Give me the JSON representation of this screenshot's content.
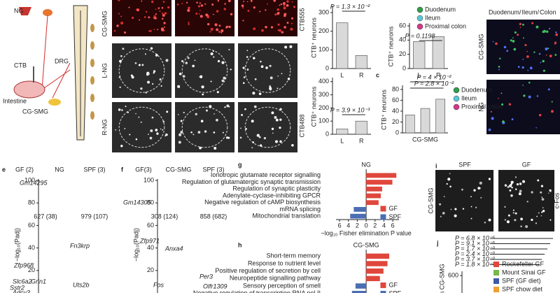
{
  "diagram": {
    "ng": "NG",
    "ctb": "CTB",
    "drg": "DRG",
    "intestine": "Intestine",
    "cgsmg": "CG-SMG"
  },
  "panel_b": {
    "rows": [
      "CG-SMG",
      "L-NG",
      "R-NG"
    ],
    "stains": [
      "CTB555",
      "CTB488"
    ]
  },
  "panel_d": {
    "channels": [
      "Duodenum/",
      "Ileum/",
      "Colon"
    ],
    "rows": [
      "CG-SMG",
      "NG"
    ]
  },
  "panel_i": {
    "panel": "i",
    "columns": [
      "SPF",
      "GF"
    ],
    "row": "CG-SMG",
    "stain": "c-Fos"
  },
  "charts": [
    {
      "type": "bar",
      "ylabel": "CTB⁺ neurons",
      "categories": [
        "L",
        "R"
      ],
      "values": [
        245,
        70
      ],
      "color": "#d9d9d9",
      "ylim": [
        0,
        330
      ],
      "yticks": [
        0,
        100,
        200,
        300
      ],
      "annotations": [
        "P = 1.3 × 10⁻²"
      ]
    },
    {
      "type": "bar",
      "ylabel": "CTB⁺ neurons",
      "categories": [
        "L",
        "R"
      ],
      "values": [
        38,
        45
      ],
      "color": "#d9d9d9",
      "ylim": [
        0,
        62
      ],
      "yticks": [
        0,
        20,
        40,
        60
      ],
      "annotations": [
        "P = 0.1198"
      ],
      "legend": [
        {
          "name": "Duodenum",
          "color": "#2e9e4a"
        },
        {
          "name": "Ileum",
          "color": "#5bc8d6"
        },
        {
          "name": "Proximal colon",
          "color": "#d2398a"
        }
      ]
    },
    {
      "type": "bar",
      "ylabel": "CTB⁺ neurons",
      "categories": [
        "L",
        "R"
      ],
      "values": [
        40,
        100
      ],
      "color": "#d9d9d9",
      "ylim": [
        0,
        420
      ],
      "yticks": [
        0,
        100,
        200,
        300,
        400
      ],
      "annotations": [
        "P = 3.9 × 10⁻³"
      ]
    },
    {
      "type": "bar",
      "panel": "c",
      "ylabel": "CTB⁺ neurons",
      "xlabel": "CG-SMG",
      "categories": [
        null,
        null,
        null
      ],
      "values": [
        33,
        45,
        62
      ],
      "color": "#d9d9d9",
      "ylim": [
        0,
        85
      ],
      "yticks": [
        0,
        20,
        40,
        60,
        80
      ],
      "annotations": [
        "P = 4 × 10⁻²",
        "P = 2.8 × 10⁻²"
      ],
      "legend": [
        {
          "name": "Duodenum",
          "color": "#2e9e4a"
        },
        {
          "name": "Ileum",
          "color": "#5bc8d6"
        },
        {
          "name": "Proximal colon",
          "color": "#d2398a"
        }
      ]
    },
    {
      "type": "volcano",
      "panel": "e",
      "groups": [
        "GF (2)",
        "NG",
        "SPF (3)"
      ],
      "ylabel": "−log₁₀(Padj)",
      "ylim": [
        0,
        100
      ],
      "yticks": [
        20,
        40,
        60,
        80,
        100
      ],
      "counts": [
        "627 (38)",
        "979 (107)"
      ],
      "genes": [
        "Gm14295",
        "Fn3krp",
        "Zfp968",
        "Slc6a2",
        "Grin1",
        "Sstr2",
        "Adcy3",
        "Uts2b"
      ]
    },
    {
      "type": "volcano",
      "panel": "f",
      "groups": [
        "GF(3)",
        "CG-SMG",
        "SPF (3)"
      ],
      "ylabel": "−log₁₀(Padj)",
      "ylim": [
        0,
        100
      ],
      "yticks": [
        20,
        40,
        60,
        80,
        100
      ],
      "counts": [
        "308 (124)",
        "858 (682)"
      ],
      "genes": [
        "Gm14305",
        "Zfp971",
        "Anxa4",
        "Fos",
        "Per3",
        "Olfr1309"
      ]
    },
    {
      "type": "hbar",
      "panel": "g",
      "title": "NG",
      "categories": [
        "Ionotropic glutamate receptor signalling",
        "Regulation of glutamatergic synaptic transmission",
        "Regulation of synaptic plasticity",
        "Adenylate-cyclase-inhibiting GPCR",
        "Negative regulation of cAMP biosynthesis",
        "mRNA splicing",
        "Mitochondrial translation"
      ],
      "values": [
        6.8,
        5.9,
        3.6,
        3.3,
        2.8,
        -2.8,
        -3.6
      ],
      "xlim": [
        -6.8,
        7.4
      ],
      "xticks": [
        {
          "value": -6,
          "label": "6"
        },
        {
          "value": -4,
          "label": "4"
        },
        {
          "value": -2,
          "label": "2"
        },
        0,
        2,
        4,
        6
      ],
      "xlabel": "−log₁₀ Fisher elimination P value",
      "legend": [
        {
          "name": "GF",
          "color": "#e0473c"
        },
        {
          "name": "SPF",
          "color": "#4a6db3"
        }
      ]
    },
    {
      "type": "hbar",
      "panel": "h",
      "title": "CG-SMG",
      "categories": [
        "Short-term memory",
        "Response to nutrient level",
        "Positive regulation of secretion by cell",
        "Neuropeptide signalling pathway",
        "Sensory perception of smell",
        "Negative regulation of transcription RNA pol II"
      ],
      "values": [
        5.2,
        4.8,
        3.9,
        3.1,
        -2.4,
        -3.2
      ],
      "xlim": [
        -6.8,
        7.4
      ],
      "legend": [
        {
          "name": "GF",
          "color": "#e0473c"
        },
        {
          "name": "SPF",
          "color": "#4a6db3"
        }
      ]
    },
    {
      "type": "dots",
      "panel": "j",
      "ylabel": "s in CG-SMG",
      "ylim": [
        0,
        700
      ],
      "yticks": [
        600
      ],
      "annotations": [
        "P = 6.8 × 10⁻⁵",
        "P = 9.1 × 10⁻⁵",
        "P = 1.7 × 10⁻³",
        "P = 2.4 × 10⁻³",
        "P = 3.7 × 10⁻³",
        "P = 1.8 × 10⁻²"
      ],
      "legend": [
        {
          "name": "Rockefeller GF",
          "color": "#e0473c"
        },
        {
          "name": "Mount Sinai GF",
          "color": "#78b84a"
        },
        {
          "name": "SPF (GF diet)",
          "color": "#3d5aa8"
        },
        {
          "name": "SPF chow diet",
          "color": "#f0a030"
        }
      ]
    }
  ]
}
